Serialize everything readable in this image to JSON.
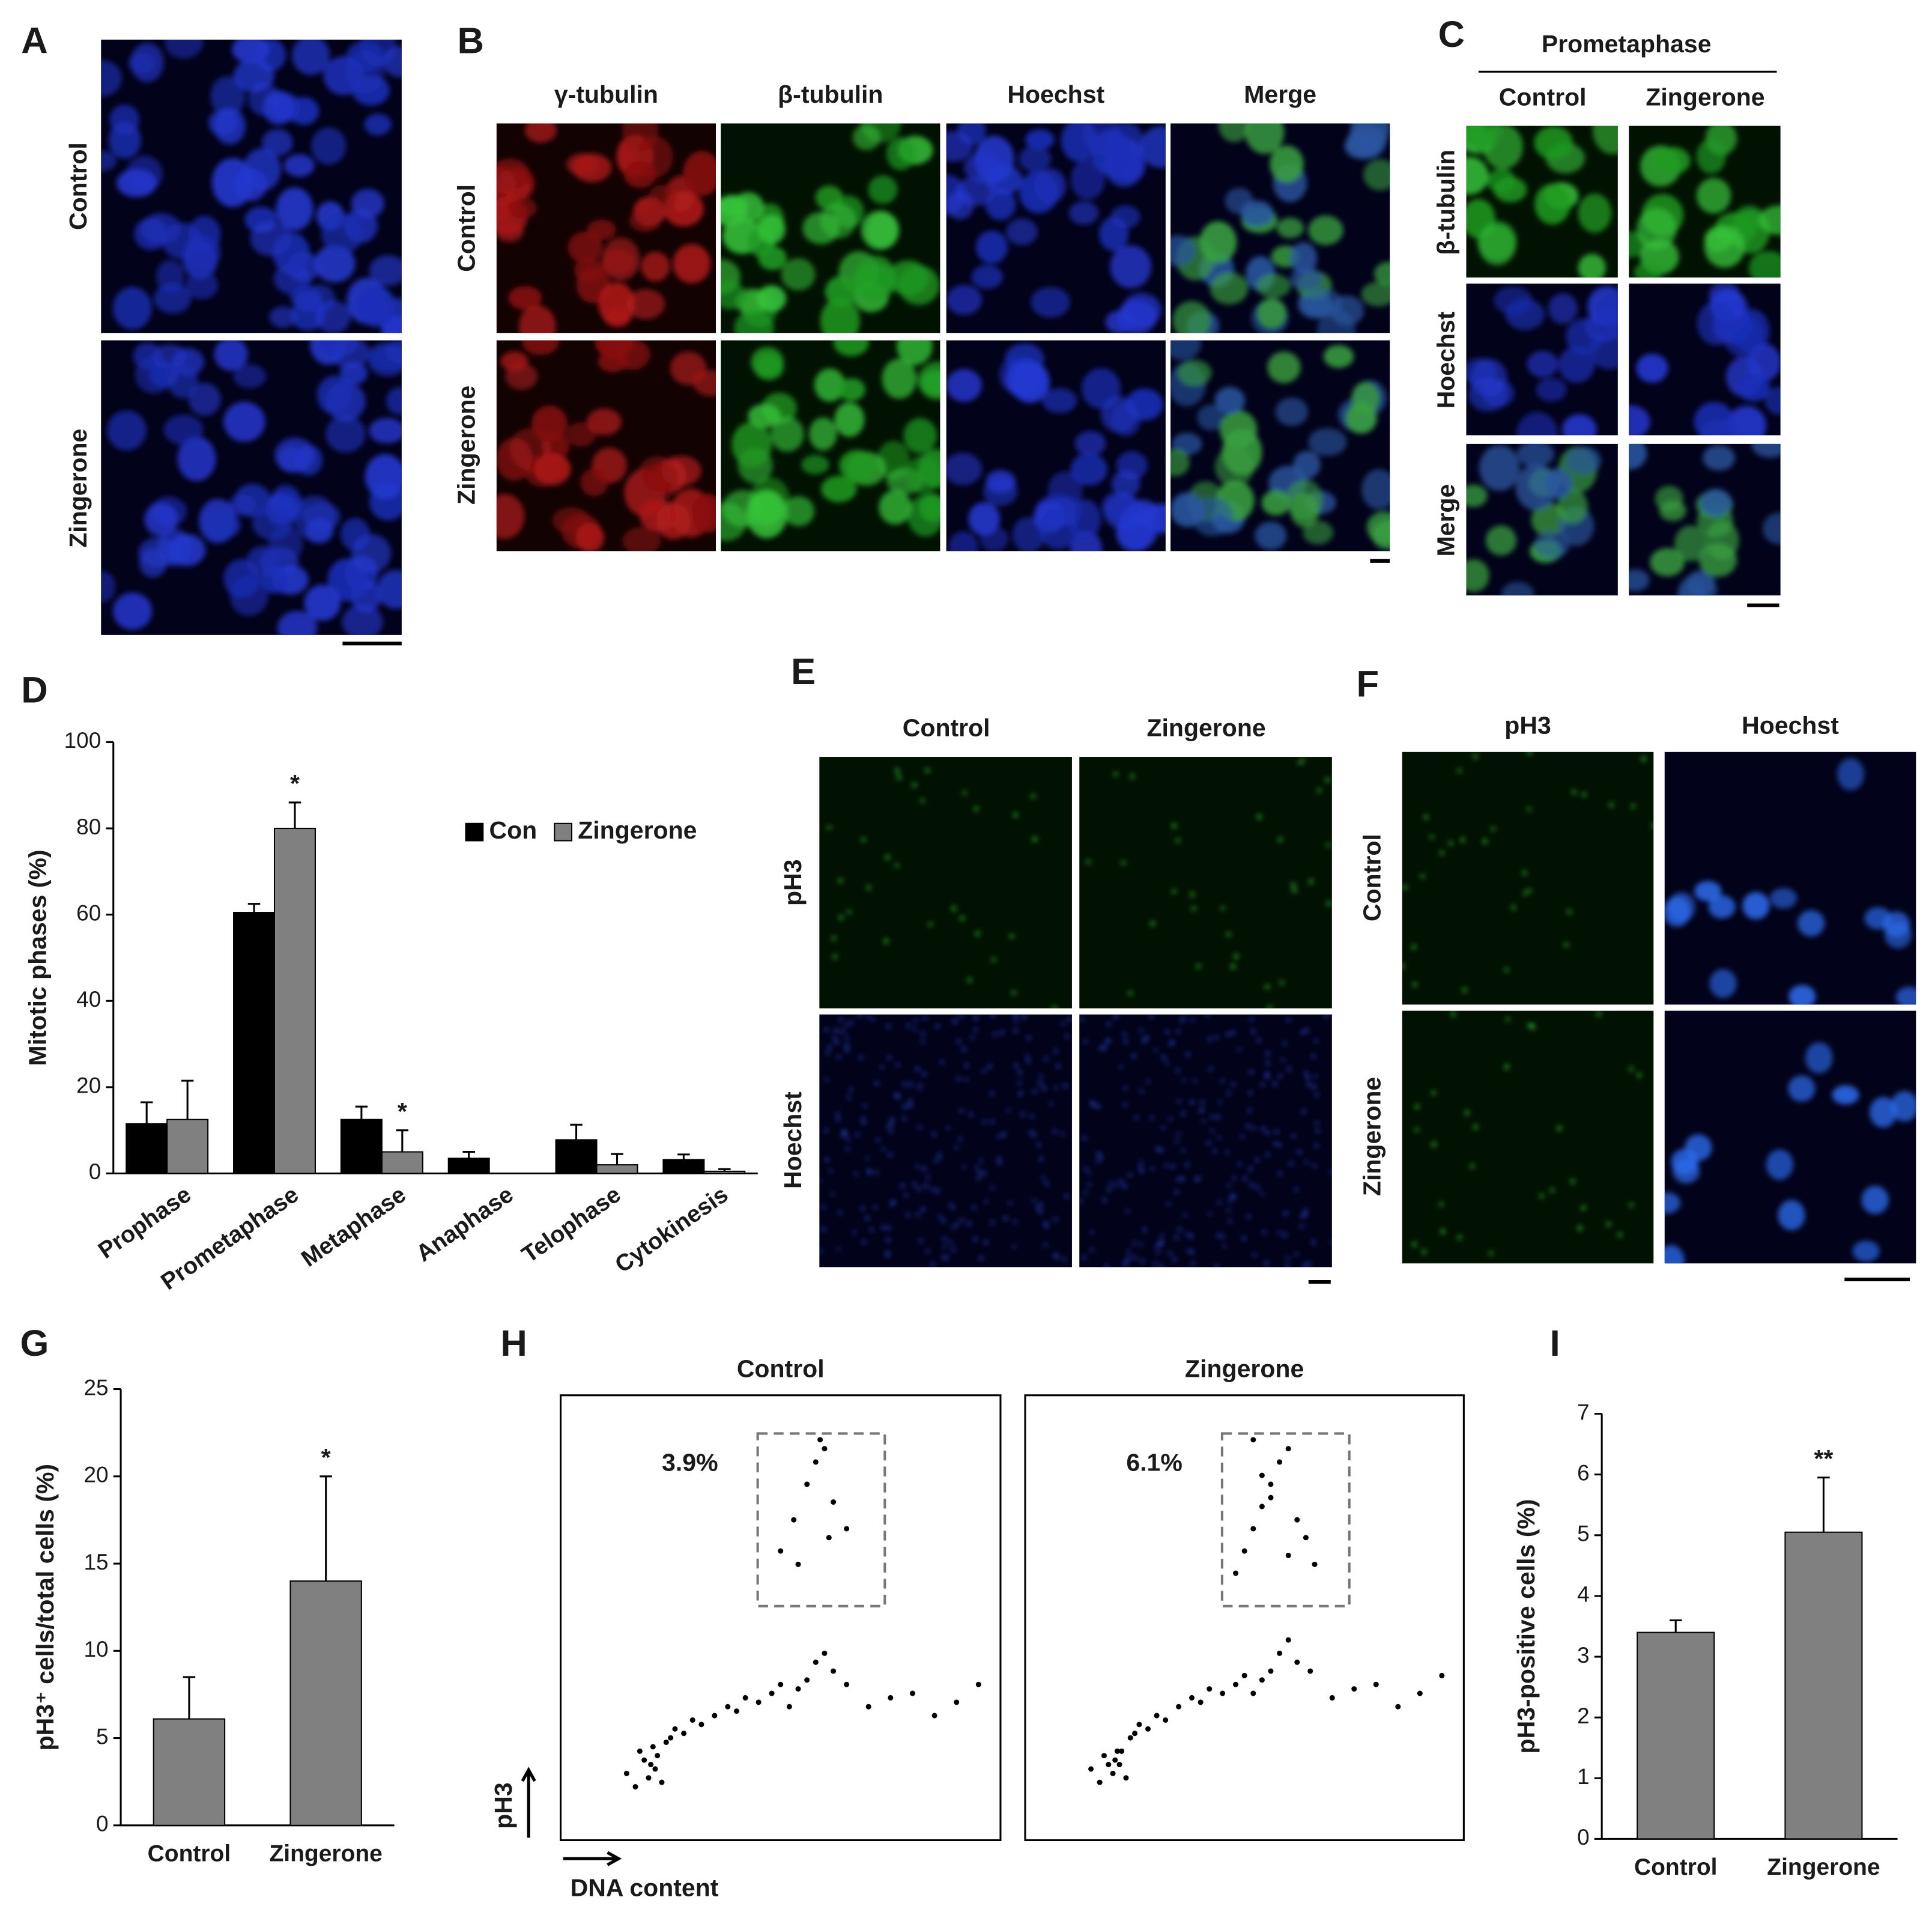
{
  "panel_labels": [
    "A",
    "B",
    "C",
    "D",
    "E",
    "F",
    "G",
    "H",
    "I"
  ],
  "A": {
    "rows": [
      "Control",
      "Zingerone"
    ]
  },
  "B": {
    "columns": [
      "γ-tubulin",
      "β-tubulin",
      "Hoechst",
      "Merge"
    ],
    "column_colors": [
      "#e0201b",
      "#2db34a",
      "#1f6fd1",
      "#1a1a1a"
    ],
    "rows": [
      "Control",
      "Zingerone"
    ]
  },
  "C": {
    "title": "Prometaphase",
    "columns": [
      "Control",
      "Zingerone"
    ],
    "rows": [
      "β-tubulin",
      "Hoechst",
      "Merge"
    ],
    "row_colors": [
      "#2db34a",
      "#1f6fd1",
      "#1a1a1a"
    ]
  },
  "E": {
    "columns": [
      "Control",
      "Zingerone"
    ],
    "rows": [
      "pH3",
      "Hoechst"
    ]
  },
  "F": {
    "columns": [
      "pH3",
      "Hoechst"
    ],
    "rows": [
      "Control",
      "Zingerone"
    ]
  },
  "chart_data": [
    {
      "type": "bar",
      "ylabel": "Mitotic phases (%)",
      "categories": [
        "Prophase",
        "Prometaphase",
        "Metaphase",
        "Anaphase",
        "Telophase",
        "Cytokinesis"
      ],
      "series": [
        {
          "name": "Con",
          "color": "#000000",
          "values": [
            11.5,
            60.5,
            12.5,
            3.5,
            7.8,
            3.2
          ],
          "errors": [
            5,
            2,
            3,
            1.5,
            3.5,
            1.2
          ]
        },
        {
          "name": "Zingerone",
          "color": "#808080",
          "values": [
            12.5,
            80,
            5,
            0,
            2,
            0.5
          ],
          "errors": [
            9,
            6,
            5,
            0,
            2.5,
            0.5
          ],
          "significance": [
            null,
            "*",
            "*",
            null,
            null,
            null
          ]
        }
      ],
      "ylim": [
        0,
        100
      ],
      "yticks": [
        0,
        20,
        40,
        60,
        80,
        100
      ]
    },
    {
      "type": "bar",
      "ylabel": "pH3⁺ cells/total cells (%)",
      "categories": [
        "Control",
        "Zingerone"
      ],
      "values": [
        6.1,
        14
      ],
      "errors": [
        2.4,
        6
      ],
      "significance": [
        null,
        "*"
      ],
      "color": "#808080",
      "ylim": [
        0,
        25
      ],
      "yticks": [
        0,
        5,
        10,
        15,
        20,
        25
      ]
    },
    {
      "type": "scatter",
      "title": "Control",
      "xlabel": "DNA content",
      "ylabel": "pH3",
      "gate_label": "3.9%",
      "gate": {
        "x": [
          448,
          737
        ],
        "y": [
          526,
          914
        ]
      },
      "x": [
        150,
        170,
        180,
        190,
        200,
        205,
        210,
        215,
        220,
        230,
        240,
        250,
        260,
        280,
        300,
        320,
        350,
        380,
        400,
        420,
        450,
        480,
        500,
        520,
        540,
        560,
        580,
        600,
        620,
        650,
        700,
        750,
        800,
        850,
        900,
        950,
        500,
        530,
        560,
        580,
        600,
        620,
        650,
        540,
        590,
        610
      ],
      "y": [
        150,
        120,
        200,
        180,
        140,
        170,
        210,
        160,
        190,
        130,
        220,
        230,
        250,
        240,
        270,
        260,
        280,
        300,
        290,
        320,
        310,
        330,
        350,
        300,
        340,
        360,
        400,
        420,
        380,
        350,
        300,
        320,
        330,
        280,
        310,
        350,
        650,
        720,
        800,
        850,
        880,
        760,
        700,
        620,
        900,
        680
      ],
      "xlim": [
        0,
        1000
      ],
      "ylim": [
        0,
        1000
      ],
      "color": "#000000"
    },
    {
      "type": "scatter",
      "title": "Zingerone",
      "gate_label": "6.1%",
      "gate": {
        "x": [
          449,
          739
        ],
        "y": [
          526,
          914
        ]
      },
      "x": [
        150,
        170,
        180,
        190,
        200,
        205,
        210,
        215,
        220,
        230,
        240,
        250,
        260,
        280,
        300,
        320,
        350,
        380,
        400,
        420,
        450,
        480,
        500,
        520,
        540,
        560,
        580,
        600,
        620,
        650,
        700,
        750,
        800,
        850,
        900,
        950,
        480,
        500,
        520,
        540,
        560,
        580,
        600,
        620,
        640,
        660,
        520,
        560,
        600,
        540
      ],
      "y": [
        160,
        130,
        190,
        170,
        150,
        180,
        200,
        170,
        200,
        140,
        230,
        240,
        260,
        250,
        280,
        270,
        300,
        320,
        310,
        340,
        330,
        350,
        370,
        330,
        360,
        380,
        420,
        450,
        400,
        380,
        320,
        340,
        350,
        300,
        330,
        370,
        600,
        650,
        700,
        750,
        800,
        850,
        880,
        720,
        680,
        620,
        900,
        770,
        640,
        820
      ],
      "xlim": [
        0,
        1000
      ],
      "ylim": [
        0,
        1000
      ],
      "color": "#000000"
    },
    {
      "type": "bar",
      "ylabel": "pH3-positive cells (%)",
      "categories": [
        "Control",
        "Zingerone"
      ],
      "values": [
        3.4,
        5.05
      ],
      "errors": [
        0.2,
        0.9
      ],
      "significance": [
        null,
        "**"
      ],
      "color": "#808080",
      "ylim": [
        0,
        7
      ],
      "yticks": [
        0,
        1,
        2,
        3,
        4,
        5,
        6,
        7
      ]
    }
  ]
}
